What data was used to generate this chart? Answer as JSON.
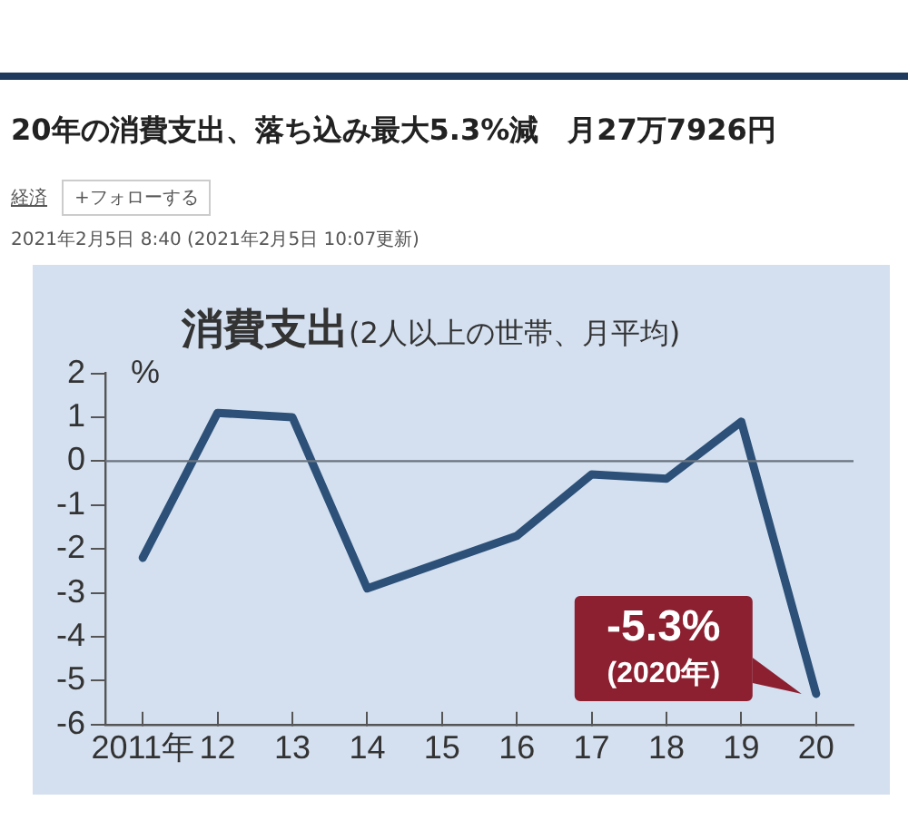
{
  "chart_data": {
    "type": "line",
    "title": "消費支出",
    "subtitle": "(2人以上の世帯、月平均)",
    "ylabel": "%",
    "categories": [
      "2011年",
      "12",
      "13",
      "14",
      "15",
      "16",
      "17",
      "18",
      "19",
      "20"
    ],
    "series": [
      {
        "color": "#2c5078",
        "values": [
          -2.2,
          1.1,
          1.0,
          -2.9,
          -2.3,
          -1.7,
          -0.3,
          -0.4,
          0.9,
          -5.3
        ]
      }
    ],
    "ylim": [
      -6,
      2
    ],
    "yticks": [
      -6,
      -5,
      -4,
      -3,
      -2,
      -1,
      0,
      1,
      2
    ],
    "grid": false,
    "marker": "none",
    "line_style": "solid",
    "ref_lines": [
      {
        "axis": "y",
        "value": 0,
        "color": "#6b7480"
      }
    ],
    "annotations": [
      "20年の消費支出、落ち込み最大5.3%減　月27万7926円",
      "経済",
      "+フォローする",
      "2021年2月5日 8:40 (2021年2月5日 10:07更新)",
      {
        "text": "-5.3%\n(2020年)",
        "x": "20",
        "y": -5.3
      }
    ]
  }
}
